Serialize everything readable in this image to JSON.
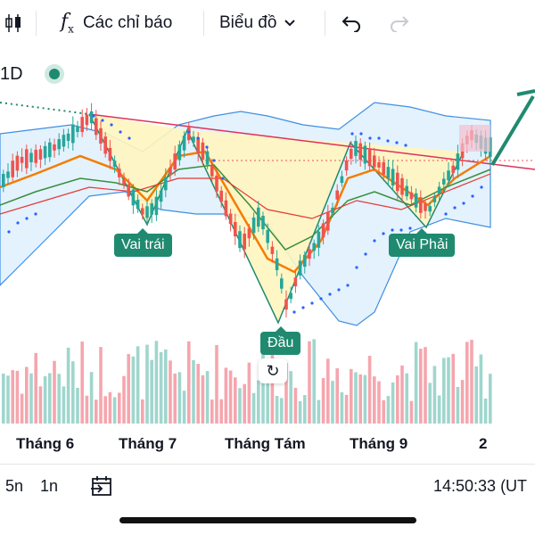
{
  "toolbar": {
    "indicators_label": "Các chỉ báo",
    "chart_type_label": "Biểu đồ",
    "fx_icon": "function-icon",
    "candles_icon": "candlestick-icon",
    "undo_icon": "undo-icon",
    "redo_icon": "redo-icon",
    "chevron_icon": "chevron-down-icon"
  },
  "symbol": {
    "interval": "1D",
    "status_color": "#1f8a70"
  },
  "annotations": {
    "left_shoulder": "Vai trái",
    "head": "Đầu",
    "right_shoulder": "Vai Phải"
  },
  "x_axis": [
    "Tháng 6",
    "Tháng 7",
    "Tháng Tám",
    "Tháng 9",
    "2"
  ],
  "bottom": {
    "range_5n": "5n",
    "range_1n": "1n",
    "time": "14:50:33 (UT"
  },
  "colors": {
    "up": "#26a69a",
    "down": "#ef5350",
    "neckline": "#e0305a",
    "pattern_fill": "#fff5c0",
    "band_fill": "#e3f2fd",
    "accent": "#1f8a70"
  }
}
